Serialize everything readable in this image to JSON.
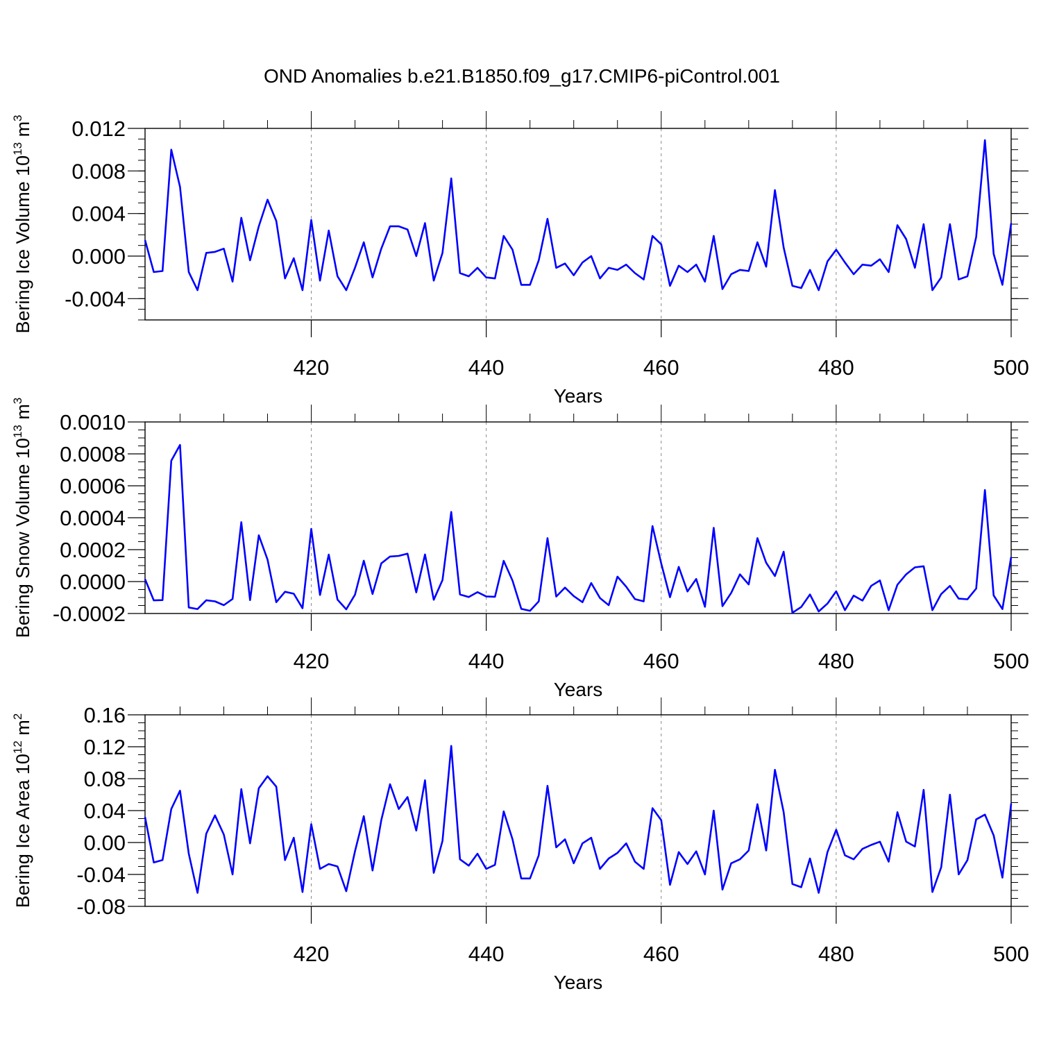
{
  "figure": {
    "title": "OND Anomalies b.e21.B1850.f09_g17.CMIP6-piControl.001"
  },
  "colors": {
    "series": "#0000ff",
    "axis": "#000000",
    "gridline": "#888888"
  },
  "chart_data": [
    {
      "type": "line",
      "ylabel_main": "Bering Ice Volume 10",
      "ylabel_exp": "13",
      "ylabel_unit": " m",
      "ylabel_unitexp": "3",
      "xlabel": "Years",
      "xlim": [
        401,
        500
      ],
      "ylim": [
        -0.006,
        0.012
      ],
      "xticks": [
        420,
        440,
        460,
        480,
        500
      ],
      "yticks": [
        0.012,
        0.008,
        0.004,
        0.0,
        -0.004
      ],
      "ytick_labels": [
        "0.012",
        "0.008",
        "0.004",
        "0.000",
        "-0.004"
      ],
      "yminor": 0.001,
      "grid": "dashed vertical lines at major x ticks",
      "series": [
        {
          "x_start": 401,
          "values": [
            0.0015,
            -0.0015,
            -0.0014,
            0.01,
            0.0065,
            -0.0015,
            -0.0032,
            0.0003,
            0.0004,
            0.0007,
            -0.0024,
            0.0036,
            -0.0004,
            0.0028,
            0.0053,
            0.0033,
            -0.0021,
            -0.0002,
            -0.0032,
            0.0034,
            -0.0023,
            0.0024,
            -0.0019,
            -0.0032,
            -0.0011,
            0.0013,
            -0.002,
            0.0007,
            0.0028,
            0.0028,
            0.0025,
            0.0,
            0.0031,
            -0.0023,
            0.0003,
            0.0073,
            -0.0016,
            -0.0019,
            -0.0011,
            -0.002,
            -0.0021,
            0.0019,
            0.0006,
            -0.0027,
            -0.0027,
            -0.0004,
            0.0035,
            -0.0011,
            -0.0007,
            -0.0018,
            -0.0006,
            0.0,
            -0.0021,
            -0.0011,
            -0.0013,
            -0.0008,
            -0.0016,
            -0.0022,
            0.0019,
            0.0011,
            -0.0028,
            -0.0009,
            -0.0015,
            -0.0008,
            -0.0024,
            0.0019,
            -0.0031,
            -0.0017,
            -0.0013,
            -0.0014,
            0.0013,
            -0.001,
            0.0062,
            0.0008,
            -0.0028,
            -0.003,
            -0.0013,
            -0.0032,
            -0.0005,
            0.0006,
            -0.0006,
            -0.0017,
            -0.0008,
            -0.0009,
            -0.0003,
            -0.0015,
            0.0029,
            0.0016,
            -0.0011,
            0.003,
            -0.0032,
            -0.002,
            0.003,
            -0.0022,
            -0.0019,
            0.0018,
            0.0109,
            0.0002,
            -0.0027,
            0.0031
          ]
        }
      ]
    },
    {
      "type": "line",
      "ylabel_main": "Bering Snow Volume 10",
      "ylabel_exp": "13",
      "ylabel_unit": " m",
      "ylabel_unitexp": "3",
      "xlabel": "Years",
      "xlim": [
        401,
        500
      ],
      "ylim": [
        -0.0002,
        0.001
      ],
      "xticks": [
        420,
        440,
        460,
        480,
        500
      ],
      "yticks": [
        0.001,
        0.0008,
        0.0006,
        0.0004,
        0.0002,
        0.0,
        -0.0002
      ],
      "ytick_labels": [
        "0.0010",
        "0.0008",
        "0.0006",
        "0.0004",
        "0.0002",
        "0.0000",
        "-0.0002"
      ],
      "yminor": 5e-05,
      "grid": "dashed vertical lines at major x ticks",
      "series": [
        {
          "x_start": 401,
          "values": [
            1.5e-05,
            -0.000118,
            -0.000116,
            0.000757,
            0.000856,
            -0.000162,
            -0.000172,
            -0.000117,
            -0.000124,
            -0.000148,
            -0.000109,
            0.000372,
            -0.000116,
            0.00029,
            0.000138,
            -0.000129,
            -6.4e-05,
            -7.6e-05,
            -0.000167,
            0.00033,
            -8.4e-05,
            0.000169,
            -0.000113,
            -0.000174,
            -8.2e-05,
            0.000131,
            -7.8e-05,
            0.000114,
            0.000157,
            0.000161,
            0.000175,
            -6.8e-05,
            0.00017,
            -0.000114,
            9e-06,
            0.000436,
            -8.1e-05,
            -9.7e-05,
            -6.6e-05,
            -9.3e-05,
            -9.5e-05,
            0.00013,
            6e-06,
            -0.000171,
            -0.000183,
            -0.000124,
            0.000272,
            -9.4e-05,
            -3.8e-05,
            -9.1e-05,
            -0.000129,
            -9e-06,
            -0.000103,
            -0.000148,
            3.1e-05,
            -3.2e-05,
            -0.00011,
            -0.000124,
            0.000348,
            0.000113,
            -9.8e-05,
            9.2e-05,
            -6.2e-05,
            1.6e-05,
            -0.000158,
            0.000337,
            -0.000154,
            -7.1e-05,
            4.5e-05,
            -1.8e-05,
            0.000272,
            0.000118,
            3.5e-05,
            0.000187,
            -0.000195,
            -0.000159,
            -8.1e-05,
            -0.000187,
            -0.000138,
            -6.1e-05,
            -0.000179,
            -8.8e-05,
            -0.000119,
            -2.7e-05,
            7e-06,
            -0.000179,
            -2e-05,
            4.5e-05,
            8.9e-05,
            9.6e-05,
            -0.000179,
            -7.8e-05,
            -2.7e-05,
            -0.000107,
            -0.000111,
            -4.4e-05,
            0.000574,
            -8.7e-05,
            -0.000172,
            0.000154
          ]
        }
      ]
    },
    {
      "type": "line",
      "ylabel_main": "Bering Ice Area 10",
      "ylabel_exp": "12",
      "ylabel_unit": " m",
      "ylabel_unitexp": "2",
      "xlabel": "Years",
      "xlim": [
        401,
        500
      ],
      "ylim": [
        -0.08,
        0.16
      ],
      "xticks": [
        420,
        440,
        460,
        480,
        500
      ],
      "yticks": [
        0.16,
        0.12,
        0.08,
        0.04,
        0.0,
        -0.04,
        -0.08
      ],
      "ytick_labels": [
        "0.16",
        "0.12",
        "0.08",
        "0.04",
        "0.00",
        "-0.04",
        "-0.08"
      ],
      "yminor": 0.01,
      "grid": "dashed vertical lines at major x ticks",
      "series": [
        {
          "x_start": 401,
          "values": [
            0.032,
            -0.025,
            -0.022,
            0.042,
            0.065,
            -0.014,
            -0.063,
            0.011,
            0.034,
            0.01,
            -0.04,
            0.067,
            -0.001,
            0.068,
            0.083,
            0.07,
            -0.022,
            0.006,
            -0.062,
            0.023,
            -0.033,
            -0.027,
            -0.03,
            -0.061,
            -0.011,
            0.033,
            -0.035,
            0.028,
            0.073,
            0.042,
            0.057,
            0.015,
            0.078,
            -0.038,
            0.002,
            0.121,
            -0.021,
            -0.029,
            -0.014,
            -0.033,
            -0.028,
            0.039,
            0.004,
            -0.045,
            -0.045,
            -0.016,
            0.071,
            -0.006,
            0.004,
            -0.026,
            -0.001,
            0.006,
            -0.033,
            -0.02,
            -0.013,
            -0.001,
            -0.024,
            -0.033,
            0.043,
            0.028,
            -0.053,
            -0.012,
            -0.027,
            -0.011,
            -0.04,
            0.04,
            -0.059,
            -0.026,
            -0.021,
            -0.01,
            0.048,
            -0.01,
            0.091,
            0.038,
            -0.052,
            -0.056,
            -0.02,
            -0.063,
            -0.012,
            0.016,
            -0.016,
            -0.021,
            -0.008,
            -0.003,
            0.001,
            -0.024,
            0.038,
            0.001,
            -0.005,
            0.066,
            -0.062,
            -0.031,
            0.06,
            -0.04,
            -0.022,
            0.029,
            0.035,
            0.009,
            -0.044,
            0.049
          ]
        }
      ]
    }
  ]
}
